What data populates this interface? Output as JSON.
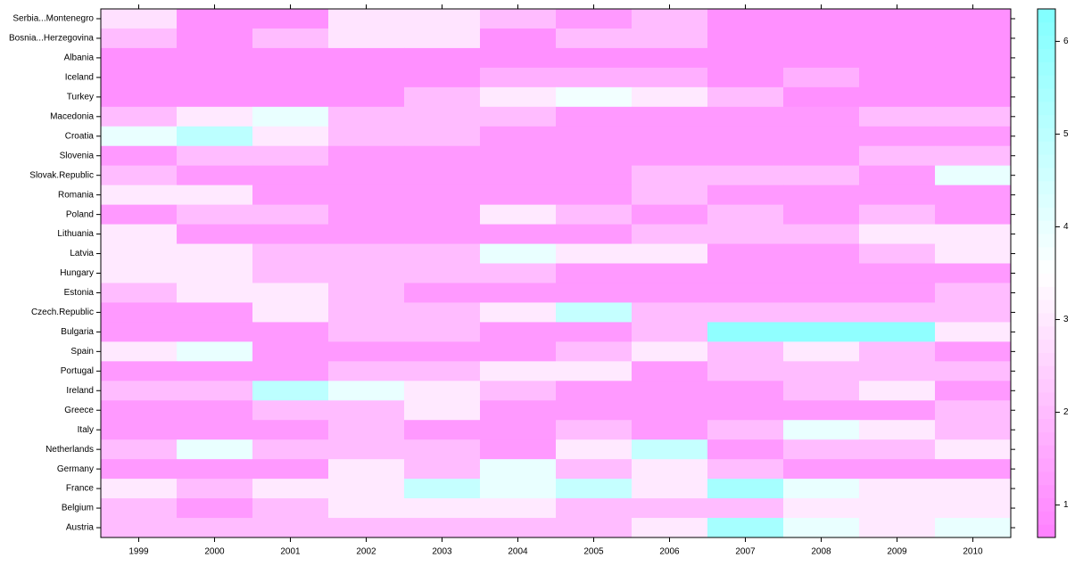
{
  "chart_data": {
    "type": "heatmap",
    "x_categories": [
      "1999",
      "2000",
      "2001",
      "2002",
      "2003",
      "2004",
      "2005",
      "2006",
      "2007",
      "2008",
      "2009",
      "2010"
    ],
    "y_categories": [
      "Serbia...Montenegro",
      "Bosnia...Herzegovina",
      "Albania",
      "Iceland",
      "Turkey",
      "Macedonia",
      "Croatia",
      "Slovenia",
      "Slovak.Republic",
      "Romania",
      "Poland",
      "Lithuania",
      "Latvia",
      "Hungary",
      "Estonia",
      "Czech.Republic",
      "Bulgaria",
      "Spain",
      "Portugal",
      "Ireland",
      "Greece",
      "Italy",
      "Netherlands",
      "Germany",
      "France",
      "Belgium",
      "Austria"
    ],
    "values": [
      [
        2.8,
        1,
        1,
        2.9,
        2.9,
        2,
        1.2,
        2,
        1,
        1,
        1,
        1
      ],
      [
        2,
        1,
        2,
        2.9,
        2.9,
        1,
        2,
        2,
        1,
        1,
        1,
        1
      ],
      [
        1,
        1,
        1,
        1,
        1,
        1,
        1,
        1,
        1,
        1,
        1,
        1
      ],
      [
        1,
        1,
        1,
        1,
        1,
        1.7,
        1.7,
        1.7,
        1,
        1.7,
        1,
        1
      ],
      [
        1,
        1,
        1,
        1,
        2,
        3,
        3.8,
        3,
        2,
        1,
        1,
        1
      ],
      [
        2,
        3,
        4,
        2,
        2,
        2,
        1.2,
        1.2,
        1.2,
        1.2,
        2,
        2
      ],
      [
        4,
        5,
        3,
        2,
        2,
        1.2,
        1.2,
        1.2,
        1.2,
        1.2,
        1.2,
        1.2
      ],
      [
        1.2,
        2,
        2,
        1.2,
        1.2,
        1.2,
        1.2,
        1.2,
        1.2,
        1.2,
        2,
        2
      ],
      [
        2,
        1.2,
        1.2,
        1.2,
        1.2,
        1.2,
        1.2,
        2,
        2,
        2,
        1.2,
        4
      ],
      [
        3,
        3,
        1.2,
        1.2,
        1.2,
        1.2,
        1.2,
        2,
        1.2,
        1.2,
        1.2,
        1.2
      ],
      [
        1.2,
        2,
        2,
        1.2,
        1.2,
        3,
        2,
        1.2,
        2,
        1.2,
        2,
        1.2
      ],
      [
        3,
        1.2,
        1.2,
        1.2,
        1.2,
        1.2,
        1.2,
        2,
        2,
        2,
        3,
        3
      ],
      [
        3,
        3,
        2,
        2,
        2,
        4,
        3,
        3,
        1.2,
        1.2,
        2,
        3
      ],
      [
        3,
        3,
        2,
        2,
        2,
        2,
        1.2,
        1.2,
        1.2,
        1.2,
        1.2,
        1.2
      ],
      [
        2,
        3,
        3,
        2,
        1.2,
        1.2,
        1.2,
        1.2,
        1.2,
        1.2,
        1.2,
        2
      ],
      [
        1.2,
        1.2,
        3,
        2,
        2,
        3,
        4.8,
        2,
        2,
        2,
        2,
        2
      ],
      [
        1.2,
        1.2,
        1.2,
        2,
        2,
        1.2,
        1.2,
        2,
        6,
        6,
        6,
        3
      ],
      [
        3,
        4,
        1.2,
        1.2,
        1.2,
        1.2,
        2,
        3,
        2,
        3,
        2,
        1.2
      ],
      [
        1.2,
        1.2,
        1.2,
        2,
        2,
        3,
        3,
        1.2,
        2,
        2,
        2,
        2
      ],
      [
        2,
        2,
        5,
        4,
        3,
        2,
        1.2,
        1.2,
        1.2,
        2,
        3,
        1.2
      ],
      [
        1.2,
        1.2,
        2,
        2,
        3,
        1.2,
        1.2,
        1.2,
        1.2,
        1.2,
        1.2,
        2
      ],
      [
        1.2,
        1.2,
        1.2,
        2,
        1.2,
        1.2,
        2,
        1.2,
        2,
        4,
        3,
        2
      ],
      [
        2,
        4,
        2,
        2,
        2,
        1.2,
        3,
        4.8,
        1.2,
        2,
        2,
        3
      ],
      [
        1.2,
        1.2,
        1.2,
        3,
        2,
        4,
        2,
        3,
        2,
        1.2,
        1.2,
        1.2
      ],
      [
        3,
        2,
        3,
        3,
        4.8,
        4,
        4.8,
        3,
        5.5,
        4,
        3,
        3
      ],
      [
        2,
        1.2,
        2,
        3,
        3,
        3,
        2,
        2,
        2,
        3,
        3,
        3
      ],
      [
        2,
        2,
        2,
        2,
        2,
        2,
        2,
        3,
        5.5,
        4,
        3,
        4
      ]
    ],
    "colors": {
      "low": "#ff80ff",
      "mid": "#ffffff",
      "high": "#80ffff"
    },
    "zlim": [
      0.65,
      6.35
    ],
    "zticks": [
      1,
      2,
      3,
      4,
      5,
      6
    ]
  }
}
